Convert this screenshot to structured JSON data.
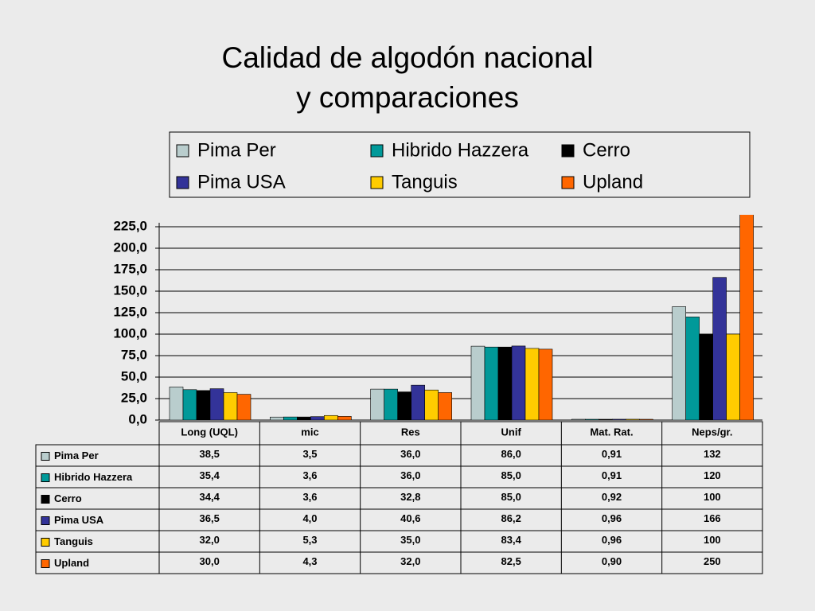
{
  "chart_data": {
    "type": "bar",
    "title": "Calidad de algodón nacional y comparaciones",
    "categories": [
      "Long (UQL)",
      "mic",
      "Res",
      "Unif",
      "Mat. Rat.",
      "Neps/gr."
    ],
    "series": [
      {
        "name": "Pima Per",
        "color": "#b9cdcd",
        "values": [
          38.5,
          3.5,
          36.0,
          86.0,
          0.91,
          132
        ],
        "value_labels": [
          "38,5",
          "3,5",
          "36,0",
          "86,0",
          "0,91",
          "132"
        ]
      },
      {
        "name": "Hibrido Hazzera",
        "color": "#009999",
        "values": [
          35.4,
          3.6,
          36.0,
          85.0,
          0.91,
          120
        ],
        "value_labels": [
          "35,4",
          "3,6",
          "36,0",
          "85,0",
          "0,91",
          "120"
        ]
      },
      {
        "name": "Cerro",
        "color": "#000000",
        "values": [
          34.4,
          3.6,
          32.8,
          85.0,
          0.92,
          100
        ],
        "value_labels": [
          "34,4",
          "3,6",
          "32,8",
          "85,0",
          "0,92",
          "100"
        ]
      },
      {
        "name": "Pima USA",
        "color": "#333399",
        "values": [
          36.5,
          4.0,
          40.6,
          86.2,
          0.96,
          166
        ],
        "value_labels": [
          "36,5",
          "4,0",
          "40,6",
          "86,2",
          "0,96",
          "166"
        ]
      },
      {
        "name": "Tanguis",
        "color": "#ffcc00",
        "values": [
          32.0,
          5.3,
          35.0,
          83.4,
          0.96,
          100
        ],
        "value_labels": [
          "32,0",
          "5,3",
          "35,0",
          "83,4",
          "0,96",
          "100"
        ]
      },
      {
        "name": "Upland",
        "color": "#ff6600",
        "values": [
          30.0,
          4.3,
          32.0,
          82.5,
          0.9,
          250
        ],
        "value_labels": [
          "30,0",
          "4,3",
          "32,0",
          "82,5",
          "0,90",
          "250"
        ]
      }
    ],
    "ylim": [
      0,
      225
    ],
    "yticks": [
      {
        "value": 0,
        "label": "0,0"
      },
      {
        "value": 25,
        "label": "25,0"
      },
      {
        "value": 50,
        "label": "50,0"
      },
      {
        "value": 75,
        "label": "75,0"
      },
      {
        "value": 100,
        "label": "100,0"
      },
      {
        "value": 125,
        "label": "125,0"
      },
      {
        "value": 150,
        "label": "150,0"
      },
      {
        "value": 175,
        "label": "175,0"
      },
      {
        "value": 200,
        "label": "200,0"
      },
      {
        "value": 225,
        "label": "225,0"
      }
    ],
    "grid": true
  }
}
